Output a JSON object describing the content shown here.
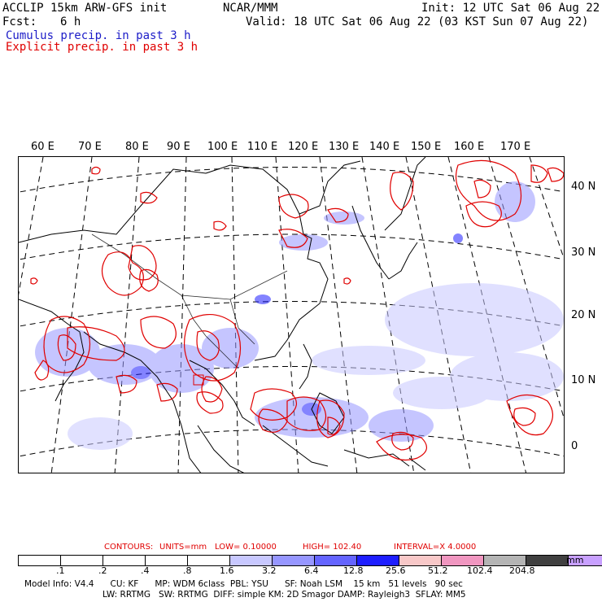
{
  "header": {
    "title_left": "ACCLIP 15km ARW-GFS init",
    "center_org": "NCAR/MMM",
    "init": "Init: 12 UTC Sat 06 Aug 22",
    "fcst_label": "Fcst:",
    "fcst_value": "6 h",
    "valid": "Valid: 18 UTC Sat 06 Aug 22 (03 KST Sun 07 Aug 22)",
    "legend_cumulus": "Cumulus precip. in past 3 h",
    "legend_explicit": "Explicit precip. in past 3 h"
  },
  "map": {
    "lon_labels": [
      "60 E",
      "70 E",
      "80 E",
      "90 E",
      "100 E",
      "110 E",
      "120 E",
      "130 E",
      "140 E",
      "150 E",
      "160 E",
      "170 E"
    ],
    "lat_labels": [
      "40 N",
      "30 N",
      "20 N",
      "10 N",
      "0"
    ]
  },
  "contours": {
    "label": "CONTOURS:",
    "units": "UNITS=mm",
    "low": "LOW= 0.10000",
    "high": "HIGH= 102.40",
    "interval": "INTERVAL=X 4.0000"
  },
  "colorbar": {
    "colors": [
      "#ffffff",
      "#ffffff",
      "#ffffff",
      "#ffffff",
      "#ffffff",
      "#c8c8ff",
      "#9696ff",
      "#6464ff",
      "#1e1eff",
      "#f8c8c8",
      "#f096c0",
      "#b4b4b4",
      "#404040",
      "#c8a0ff"
    ],
    "ticks": [
      ".1",
      ".2",
      ".4",
      ".8",
      "1.6",
      "3.2",
      "6.4",
      "12.8",
      "25.6",
      "51.2",
      "102.4",
      "204.8"
    ],
    "units": "mm"
  },
  "footer": {
    "line1": "Model Info: V4.4      CU: KF      MP: WDM 6class  PBL: YSU      SF: Noah LSM    15 km   51 levels   90 sec",
    "line2": "LW: RRTMG   SW: RRTMG  DIFF: simple KM: 2D Smagor DAMP: Rayleigh3  SFLAY: MM5"
  }
}
